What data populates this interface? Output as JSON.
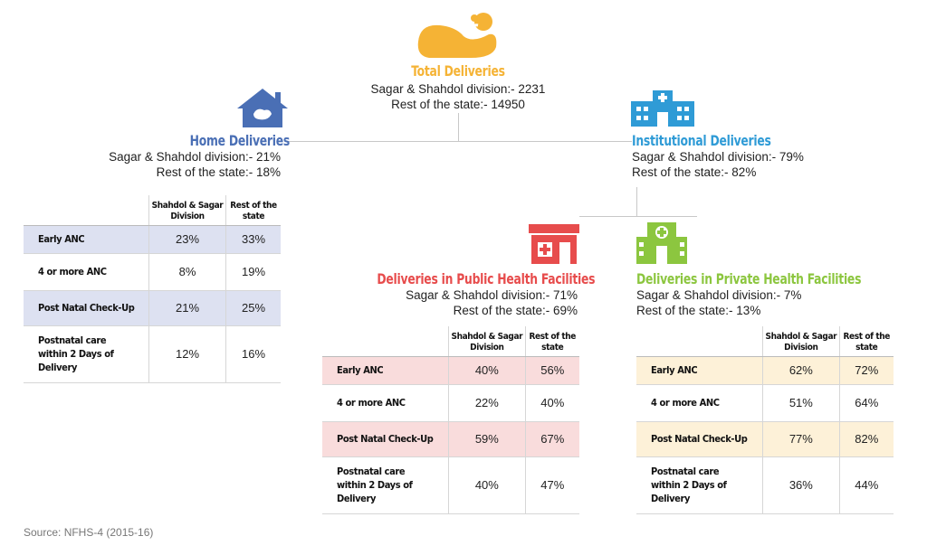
{
  "colors": {
    "total": "#f5b335",
    "home": "#4a6fb5",
    "institutional": "#2f9bd6",
    "public": "#e74c4c",
    "private": "#8cc63f",
    "home_shade": "#dde1f1",
    "public_shade": "#f9dcdc",
    "private_shade": "#fdf1d8"
  },
  "total": {
    "title": "Total Deliveries",
    "line1": "Sagar & Shahdol division:- 2231",
    "line2": "Rest of the state:- 14950"
  },
  "home": {
    "title": "Home Deliveries",
    "line1": "Sagar & Shahdol division:- 21%",
    "line2": "Rest of the state:- 18%"
  },
  "institutional": {
    "title": "Institutional Deliveries",
    "line1": "Sagar & Shahdol division:- 79%",
    "line2": "Rest of the state:- 82%"
  },
  "public": {
    "title": "Deliveries in Public Health Facilities",
    "line1": "Sagar & Shahdol division:- 71%",
    "line2": "Rest of the state:- 69%"
  },
  "private": {
    "title": "Deliveries in Private Health Facilities",
    "line1": "Sagar & Shahdol division:- 7%",
    "line2": "Rest of the state:- 13%"
  },
  "headers": {
    "col1": "Shahdol & Sagar Division",
    "col2": "Rest of the state"
  },
  "rows": [
    "Early ANC",
    "4 or more ANC",
    "Post Natal Check-Up",
    "Postnatal care within 2 Days of Delivery"
  ],
  "home_table": [
    [
      "23%",
      "33%"
    ],
    [
      "8%",
      "19%"
    ],
    [
      "21%",
      "25%"
    ],
    [
      "12%",
      "16%"
    ]
  ],
  "public_table": [
    [
      "40%",
      "56%"
    ],
    [
      "22%",
      "40%"
    ],
    [
      "59%",
      "67%"
    ],
    [
      "40%",
      "47%"
    ]
  ],
  "private_table": [
    [
      "62%",
      "72%"
    ],
    [
      "51%",
      "64%"
    ],
    [
      "77%",
      "82%"
    ],
    [
      "36%",
      "44%"
    ]
  ],
  "source": "Source: NFHS-4 (2015-16)"
}
